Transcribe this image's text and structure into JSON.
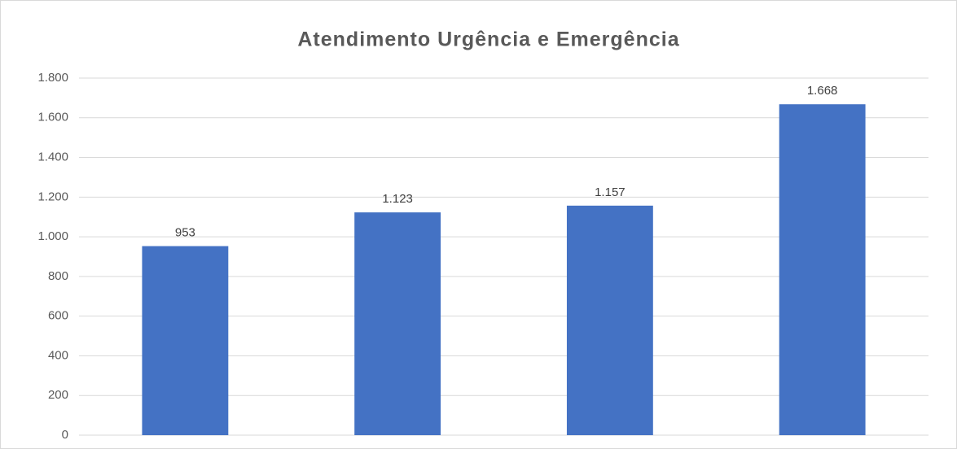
{
  "chart_data": {
    "type": "bar",
    "title": "Atendimento Urgência e Emergência",
    "categories": [
      null,
      null,
      null,
      null
    ],
    "values": [
      953,
      1123,
      1157,
      1668
    ],
    "value_labels": [
      "953",
      "1.123",
      "1.157",
      "1.668"
    ],
    "color": "#4472c4",
    "ylim": [
      0,
      1800
    ],
    "yticks": [
      0,
      200,
      400,
      600,
      800,
      {
        "value": 1000,
        "label": "1.000"
      },
      {
        "value": 1200,
        "label": "1.200"
      },
      {
        "value": 1400,
        "label": "1.400"
      },
      {
        "value": 1600,
        "label": "1.600"
      },
      {
        "value": 1800,
        "label": "1.800"
      }
    ],
    "grid": true
  }
}
